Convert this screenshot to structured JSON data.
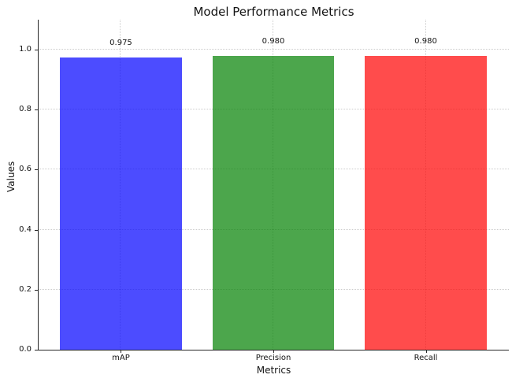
{
  "chart_data": {
    "type": "bar",
    "title": "Model Performance Metrics",
    "xlabel": "Metrics",
    "ylabel": "Values",
    "categories": [
      "mAP",
      "Precision",
      "Recall"
    ],
    "values": [
      0.975,
      0.98,
      0.98
    ],
    "value_labels": [
      "0.975",
      "0.980",
      "0.980"
    ],
    "bar_colors": [
      "#0000FF",
      "#008000",
      "#FF0000"
    ],
    "bar_alpha": 0.7,
    "bar_width": 0.8,
    "xlim": [
      -0.54,
      2.54
    ],
    "ylim": [
      0,
      1.1
    ],
    "yticks": [
      0.0,
      0.2,
      0.4,
      0.6,
      0.8,
      1.0
    ],
    "ytick_labels": [
      "0.0",
      "0.2",
      "0.4",
      "0.6",
      "0.8",
      "1.0"
    ],
    "grid": true,
    "grid_style": "dotted",
    "grid_color": "#CCCCCC",
    "legend_position": "none",
    "colors": {
      "background": "#FFFFFF",
      "spine": "#262626",
      "text": "#141414"
    }
  }
}
